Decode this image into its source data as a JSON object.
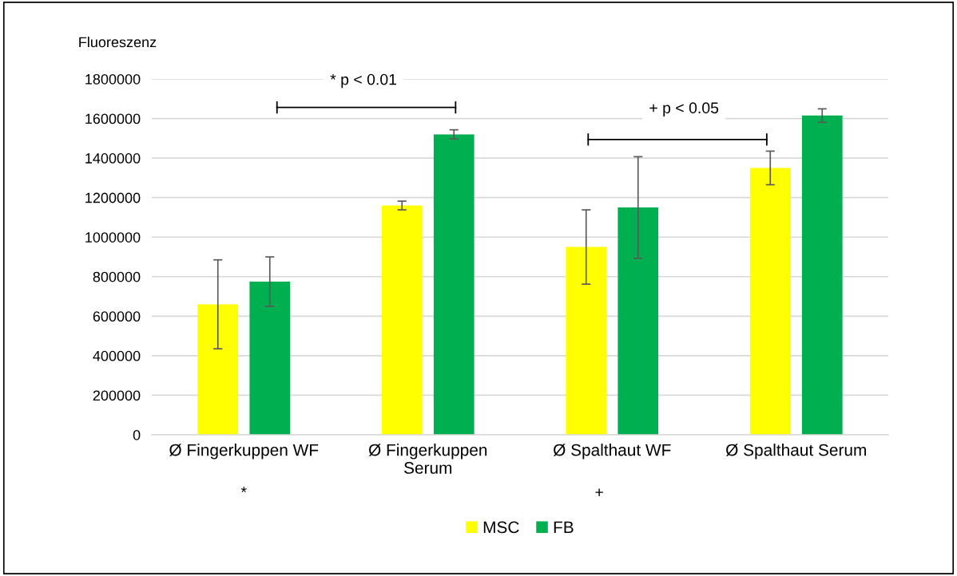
{
  "chart_data": {
    "type": "bar",
    "ylabel": "Fluoreszenz",
    "categories": [
      "Ø Fingerkuppen WF",
      "Ø Fingerkuppen\nSerum",
      "Ø Spalthaut WF",
      "Ø Spalthaut Serum"
    ],
    "series": [
      {
        "name": "MSC",
        "color": "#ffff00",
        "values": [
          660000,
          1160000,
          950000,
          1350000
        ],
        "errors": [
          225000,
          22000,
          188000,
          85000
        ]
      },
      {
        "name": "FB",
        "color": "#00b050",
        "values": [
          775000,
          1520000,
          1150000,
          1615000
        ],
        "errors": [
          125000,
          23000,
          257000,
          34000
        ]
      }
    ],
    "ylim": [
      0,
      1800000
    ],
    "yticks": [
      0,
      200000,
      400000,
      600000,
      800000,
      1000000,
      1200000,
      1400000,
      1600000,
      1800000
    ],
    "grid": "y",
    "legend": "bottom",
    "annotations": [
      "* p < 0.01",
      "+ p < 0.05",
      "*",
      "+"
    ]
  }
}
